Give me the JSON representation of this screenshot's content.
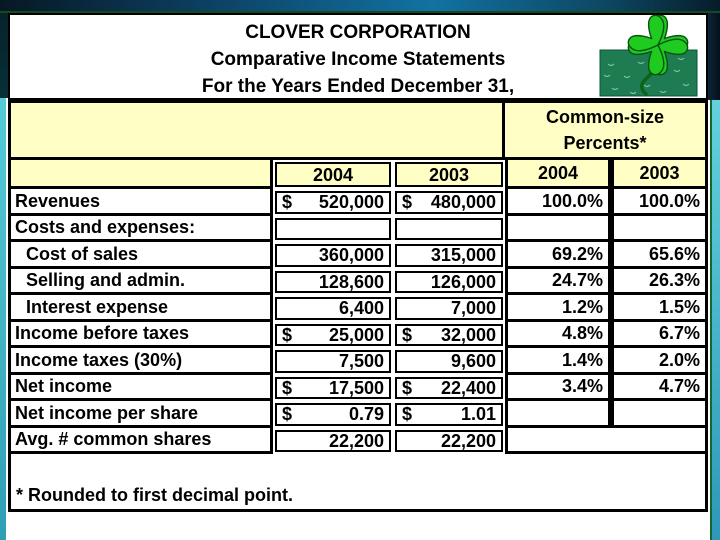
{
  "slide": {
    "title_lines": [
      "CLOVER CORPORATION",
      "Comparative Income Statements",
      "For the Years Ended December 31,"
    ],
    "footnote": "* Rounded to first decimal point."
  },
  "table": {
    "group_header_lines": [
      "Common-size",
      "Percents*"
    ],
    "year_headers": [
      "2004",
      "2003",
      "2004",
      "2003"
    ],
    "rows": [
      {
        "label": "Revenues",
        "indent": false,
        "cells": [
          {
            "sym": "$",
            "val": "520,000"
          },
          {
            "sym": "$",
            "val": "480,000"
          },
          {
            "val": "100.0%"
          },
          {
            "val": "100.0%"
          }
        ]
      },
      {
        "label": "Costs and expenses:",
        "indent": false,
        "cells": [
          {
            "sym": "",
            "val": ""
          },
          {
            "sym": "",
            "val": ""
          },
          {
            "val": ""
          },
          {
            "val": ""
          }
        ]
      },
      {
        "label": "Cost of sales",
        "indent": true,
        "cells": [
          {
            "sym": "",
            "val": "360,000"
          },
          {
            "sym": "",
            "val": "315,000"
          },
          {
            "val": "69.2%"
          },
          {
            "val": "65.6%"
          }
        ]
      },
      {
        "label": "Selling and admin.",
        "indent": true,
        "cells": [
          {
            "sym": "",
            "val": "128,600"
          },
          {
            "sym": "",
            "val": "126,000"
          },
          {
            "val": "24.7%"
          },
          {
            "val": "26.3%"
          }
        ]
      },
      {
        "label": "Interest expense",
        "indent": true,
        "cells": [
          {
            "sym": "",
            "val": "6,400"
          },
          {
            "sym": "",
            "val": "7,000"
          },
          {
            "val": "1.2%"
          },
          {
            "val": "1.5%"
          }
        ]
      },
      {
        "label": "Income before taxes",
        "indent": false,
        "cells": [
          {
            "sym": "$",
            "val": "25,000"
          },
          {
            "sym": "$",
            "val": "32,000"
          },
          {
            "val": "4.8%"
          },
          {
            "val": "6.7%"
          }
        ]
      },
      {
        "label": "Income taxes (30%)",
        "indent": false,
        "cells": [
          {
            "sym": "",
            "val": "7,500"
          },
          {
            "sym": "",
            "val": "9,600"
          },
          {
            "val": "1.4%"
          },
          {
            "val": "2.0%"
          }
        ]
      },
      {
        "label": "Net income",
        "indent": false,
        "cells": [
          {
            "sym": "$",
            "val": "17,500"
          },
          {
            "sym": "$",
            "val": "22,400"
          },
          {
            "val": "3.4%"
          },
          {
            "val": "4.7%"
          }
        ]
      },
      {
        "label": "Net income per share",
        "indent": false,
        "cells": [
          {
            "sym": "$",
            "val": "0.79"
          },
          {
            "sym": "$",
            "val": "1.01"
          },
          {
            "val": ""
          },
          {
            "val": ""
          }
        ]
      },
      {
        "label": "Avg. # common shares",
        "indent": false,
        "merged_pct": true,
        "cells": [
          {
            "sym": "",
            "val": "22,200"
          },
          {
            "sym": "",
            "val": "22,200"
          }
        ]
      }
    ]
  },
  "icons": {
    "clover": "four-leaf-clover-icon"
  },
  "colors": {
    "header_fill": "#ffffc5",
    "table_border": "#000000",
    "top_band_blue": "#0c3a5a",
    "edge_teal": "#3fbccd",
    "edge_green_line": "#15682c",
    "clover_green": "#1fcb1f",
    "clover_panel_green": "#1e7b52"
  }
}
